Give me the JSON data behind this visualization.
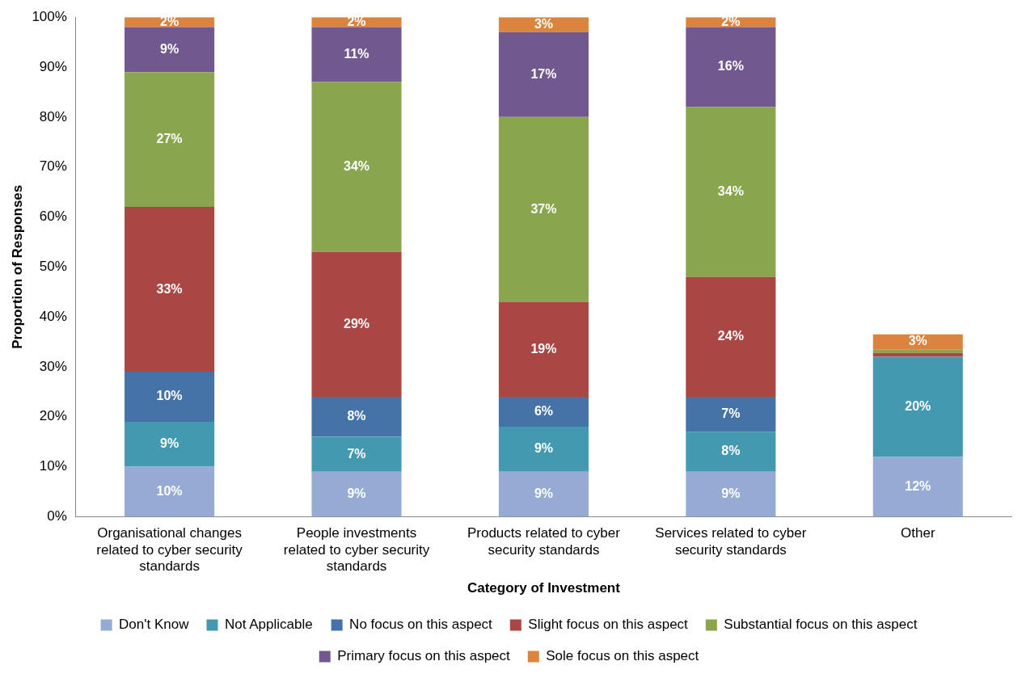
{
  "chart_data": {
    "type": "bar",
    "stacked": true,
    "xlabel": "Category of Investment",
    "ylabel": "Proportion of Responses",
    "categories": [
      "Organisational changes related to cyber security standards",
      "People investments related to cyber security standards",
      "Products related to cyber security standards",
      "Services related to cyber security standards",
      "Other"
    ],
    "ylim": [
      0,
      100
    ],
    "yticks": [
      {
        "value": 0,
        "label": "0%"
      },
      {
        "value": 10,
        "label": "10%"
      },
      {
        "value": 20,
        "label": "20%"
      },
      {
        "value": 30,
        "label": "30%"
      },
      {
        "value": 40,
        "label": "40%"
      },
      {
        "value": 50,
        "label": "50%"
      },
      {
        "value": 60,
        "label": "60%"
      },
      {
        "value": 70,
        "label": "70%"
      },
      {
        "value": 80,
        "label": "80%"
      },
      {
        "value": 90,
        "label": "90%"
      },
      {
        "value": 100,
        "label": "100%"
      }
    ],
    "grid": false,
    "legend": "bottom",
    "series": [
      {
        "name": "Don't Know",
        "color": "#95abd3",
        "values": [
          10,
          9,
          9,
          9,
          12
        ],
        "value_labels": [
          "10%",
          "9%",
          "9%",
          "9%",
          "12%"
        ]
      },
      {
        "name": "Not Applicable",
        "color": "#4299b0",
        "values": [
          9,
          7,
          9,
          8,
          20
        ],
        "value_labels": [
          "9%",
          "7%",
          "9%",
          "8%",
          "20%"
        ]
      },
      {
        "name": "No focus on this aspect",
        "color": "#4572a7",
        "values": [
          10,
          8,
          6,
          7,
          0
        ],
        "value_labels": [
          "10%",
          "8%",
          "6%",
          "7%",
          null
        ]
      },
      {
        "name": "Slight focus on this aspect",
        "color": "#aa4643",
        "values": [
          33,
          29,
          19,
          24,
          0.8
        ],
        "value_labels": [
          "33%",
          "29%",
          "19%",
          "24%",
          null
        ]
      },
      {
        "name": "Substantial focus on this aspect",
        "color": "#89a54e",
        "values": [
          27,
          34,
          37,
          34,
          0.7
        ],
        "value_labels": [
          "27%",
          "34%",
          "37%",
          "34%",
          null
        ]
      },
      {
        "name": "Primary focus on this aspect",
        "color": "#71588f",
        "values": [
          9,
          11,
          17,
          16,
          0
        ],
        "value_labels": [
          "9%",
          "11%",
          "17%",
          "16%",
          null
        ]
      },
      {
        "name": "Sole focus on this aspect",
        "color": "#db843d",
        "values": [
          2,
          2,
          3,
          2,
          3
        ],
        "value_labels": [
          "2%",
          "2%",
          "3%",
          "2%",
          "3%"
        ]
      }
    ]
  }
}
